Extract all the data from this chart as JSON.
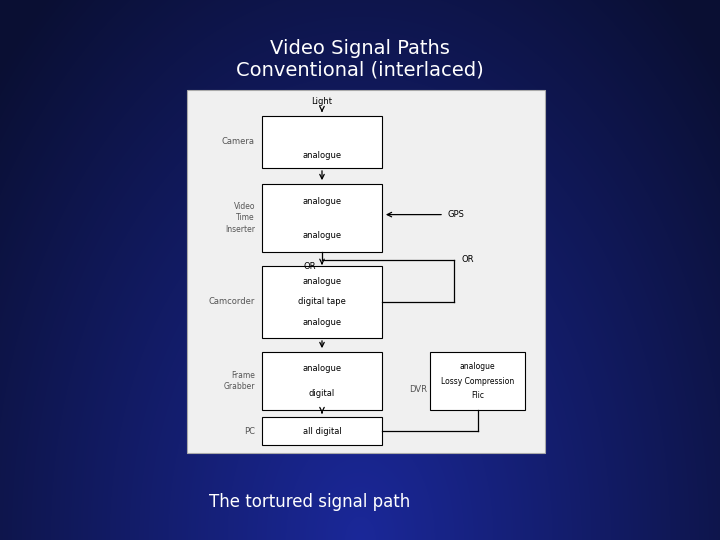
{
  "title_line1": "Video Signal Paths",
  "title_line2": "Conventional (interlaced)",
  "subtitle": "The tortured signal path",
  "title_color": "#ffffff",
  "subtitle_color": "#ffffff",
  "diagram_bg": "#f0f0f0",
  "box_fill": "#ffffff",
  "box_edge": "#000000",
  "label_color": "#555555",
  "text_color": "#000000",
  "bg_left": "#0d2070",
  "bg_right": "#061030",
  "bg_top": "#040818",
  "bg_bottom": "#1040b0"
}
